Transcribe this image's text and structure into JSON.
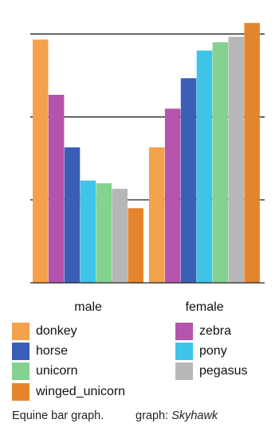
{
  "chart_data": {
    "type": "bar",
    "categories": [
      "male",
      "female"
    ],
    "series": [
      {
        "name": "donkey",
        "values": [
          0.88,
          0.49
        ],
        "color": "#f4a14b"
      },
      {
        "name": "zebra",
        "values": [
          0.68,
          0.63
        ],
        "color": "#b554ad"
      },
      {
        "name": "horse",
        "values": [
          0.49,
          0.74
        ],
        "color": "#3b5fb7"
      },
      {
        "name": "pony",
        "values": [
          0.37,
          0.84
        ],
        "color": "#3fc4e7"
      },
      {
        "name": "unicorn",
        "values": [
          0.36,
          0.87
        ],
        "color": "#84d190"
      },
      {
        "name": "pegasus",
        "values": [
          0.34,
          0.89
        ],
        "color": "#b7b7b7"
      },
      {
        "name": "winged_unicorn",
        "values": [
          0.27,
          0.94
        ],
        "color": "#e4852e"
      }
    ],
    "ylim": [
      0,
      1
    ],
    "gridlines": [
      0.3,
      0.6,
      0.9
    ],
    "grid": true,
    "legend": "bottom, two columns",
    "title": "",
    "xlabel": "",
    "ylabel": ""
  },
  "legend": {
    "items": [
      {
        "label": "donkey",
        "color": "#f4a14b"
      },
      {
        "label": "zebra",
        "color": "#b554ad"
      },
      {
        "label": "horse",
        "color": "#3b5fb7"
      },
      {
        "label": "pony",
        "color": "#3fc4e7"
      },
      {
        "label": "unicorn",
        "color": "#84d190"
      },
      {
        "label": "pegasus",
        "color": "#b7b7b7"
      },
      {
        "label": "winged_unicorn",
        "color": "#e4852e"
      }
    ]
  },
  "caption": {
    "text": "Equine bar graph.",
    "credit_prefix": "graph: ",
    "credit_name": "Skyhawk"
  }
}
